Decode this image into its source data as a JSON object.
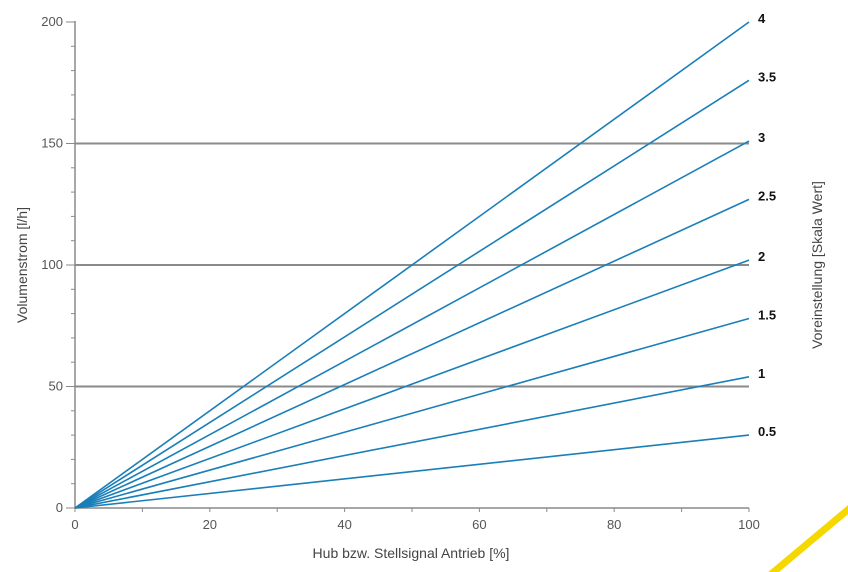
{
  "chart_data": {
    "type": "line",
    "title": "",
    "xlabel": "Hub bzw. Stellsignal Antrieb [%]",
    "ylabel": "Volumenstrom [l/h]",
    "right_label": "Voreinstellung [Skala Wert]",
    "xlim": [
      0,
      100
    ],
    "ylim": [
      0,
      200
    ],
    "xticks": [
      0,
      20,
      40,
      60,
      80,
      100
    ],
    "yticks": [
      0,
      50,
      100,
      150,
      200
    ],
    "gridlines_y": [
      50,
      100,
      150
    ],
    "line_color": "#1a7fb8",
    "grid_color": "#8a8a8a",
    "accent_color": "#f5d800",
    "series": [
      {
        "name": "0.5",
        "x": [
          0,
          100
        ],
        "y": [
          0,
          30
        ]
      },
      {
        "name": "1",
        "x": [
          0,
          100
        ],
        "y": [
          0,
          54
        ]
      },
      {
        "name": "1.5",
        "x": [
          0,
          100
        ],
        "y": [
          0,
          78
        ]
      },
      {
        "name": "2",
        "x": [
          0,
          100
        ],
        "y": [
          0,
          102
        ]
      },
      {
        "name": "2.5",
        "x": [
          0,
          100
        ],
        "y": [
          0,
          127
        ]
      },
      {
        "name": "3",
        "x": [
          0,
          100
        ],
        "y": [
          0,
          151
        ]
      },
      {
        "name": "3.5",
        "x": [
          0,
          100
        ],
        "y": [
          0,
          176
        ]
      },
      {
        "name": "4",
        "x": [
          0,
          100
        ],
        "y": [
          0,
          200
        ]
      }
    ]
  }
}
